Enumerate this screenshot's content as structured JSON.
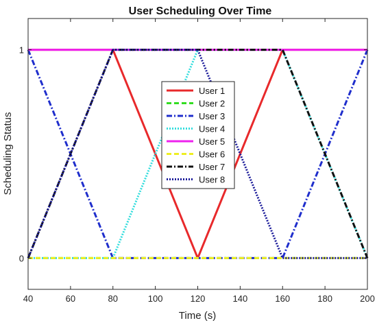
{
  "chart_data": {
    "type": "line",
    "title": "User Scheduling Over Time",
    "xlabel": "Time (s)",
    "ylabel": "Scheduling Status",
    "xlim": [
      40,
      200
    ],
    "ylim": [
      -0.15,
      1.15
    ],
    "xticks": [
      40,
      60,
      80,
      100,
      120,
      140,
      160,
      180,
      200
    ],
    "yticks": [
      0,
      1
    ],
    "grid": false,
    "legend_position": "center",
    "series": [
      {
        "name": "User 1",
        "color": "#e8292b",
        "dash": "solid",
        "x": [
          40,
          80,
          120,
          160,
          200
        ],
        "y": [
          1,
          1,
          0,
          1,
          1
        ]
      },
      {
        "name": "User 2",
        "color": "#33dd22",
        "dash": "dashed",
        "x": [
          40,
          80,
          120,
          160,
          200
        ],
        "y": [
          0,
          0,
          0,
          0,
          0
        ]
      },
      {
        "name": "User 3",
        "color": "#1f2ecc",
        "dash": "dashdot",
        "x": [
          40,
          80,
          120,
          160,
          200
        ],
        "y": [
          1,
          0,
          0,
          0,
          1
        ]
      },
      {
        "name": "User 4",
        "color": "#33dddd",
        "dash": "dotted",
        "x": [
          40,
          80,
          120,
          160,
          200
        ],
        "y": [
          0,
          0,
          1,
          1,
          0
        ]
      },
      {
        "name": "User 5",
        "color": "#ee22ee",
        "dash": "solid",
        "x": [
          40,
          80,
          120,
          160,
          200
        ],
        "y": [
          1,
          1,
          1,
          1,
          1
        ]
      },
      {
        "name": "User 6",
        "color": "#eeee22",
        "dash": "dashed",
        "x": [
          40,
          80,
          120,
          160,
          200
        ],
        "y": [
          0,
          0,
          0,
          0,
          0
        ]
      },
      {
        "name": "User 7",
        "color": "#111111",
        "dash": "dashdot",
        "x": [
          40,
          80,
          120,
          160,
          200
        ],
        "y": [
          0,
          1,
          1,
          1,
          0
        ]
      },
      {
        "name": "User 8",
        "color": "#1a1a99",
        "dash": "dotted",
        "x": [
          40,
          80,
          120,
          160,
          200
        ],
        "y": [
          0,
          1,
          1,
          0,
          0
        ]
      }
    ]
  }
}
